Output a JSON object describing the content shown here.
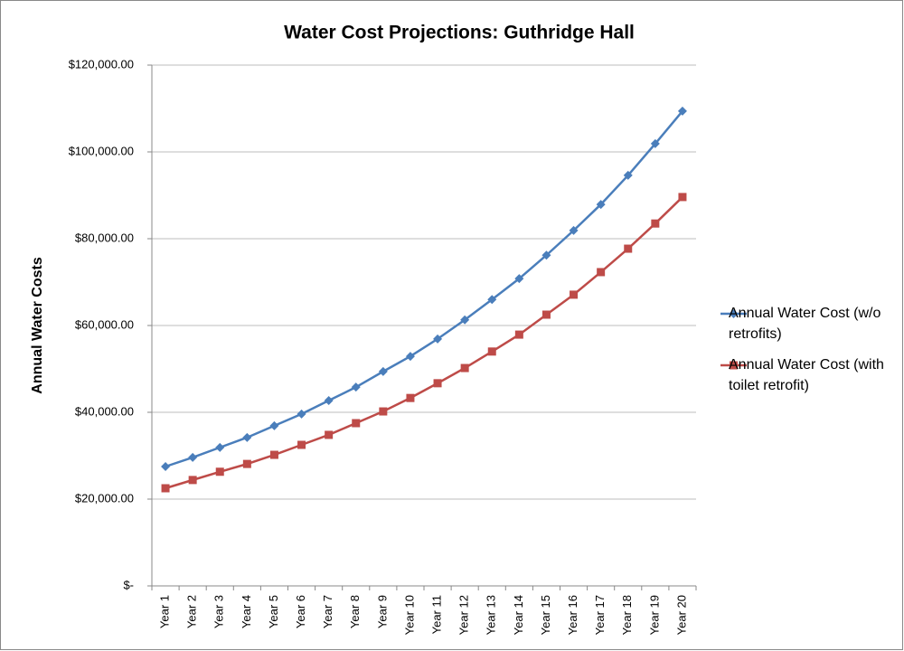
{
  "chart_data": {
    "type": "line",
    "title": "Water Cost Projections: Guthridge Hall",
    "y_axis_label": "Annual Water Costs",
    "categories": [
      "Year 1",
      "Year 2",
      "Year 3",
      "Year 4",
      "Year 5",
      "Year 6",
      "Year 7",
      "Year 8",
      "Year 9",
      "Year 10",
      "Year 11",
      "Year 12",
      "Year 13",
      "Year 14",
      "Year 15",
      "Year 16",
      "Year 17",
      "Year 18",
      "Year 19",
      "Year 20"
    ],
    "series": [
      {
        "name": "Annual Water Cost (w/o retrofits)",
        "color": "#4a7ebb",
        "marker": "diamond",
        "values": [
          27500,
          29600,
          31900,
          34200,
          36900,
          39600,
          42700,
          45800,
          49400,
          52900,
          56900,
          61300,
          66000,
          70800,
          76200,
          81900,
          87900,
          94600,
          101900,
          109400
        ]
      },
      {
        "name": "Annual Water Cost (with toilet retrofit)",
        "color": "#be4b48",
        "marker": "square",
        "values": [
          22500,
          24400,
          26300,
          28100,
          30200,
          32500,
          34800,
          37500,
          40200,
          43300,
          46700,
          50200,
          54000,
          57900,
          62500,
          67100,
          72300,
          77700,
          83500,
          89600
        ]
      }
    ],
    "ylim": [
      0,
      120000
    ],
    "yticks": [
      {
        "value": 0,
        "label": "$-"
      },
      {
        "value": 20000,
        "label": "$20,000.00"
      },
      {
        "value": 40000,
        "label": "$40,000.00"
      },
      {
        "value": 60000,
        "label": "$60,000.00"
      },
      {
        "value": 80000,
        "label": "$80,000.00"
      },
      {
        "value": 100000,
        "label": "$100,000.00"
      },
      {
        "value": 120000,
        "label": "$120,000.00"
      }
    ],
    "grid": true,
    "legend": "right"
  }
}
